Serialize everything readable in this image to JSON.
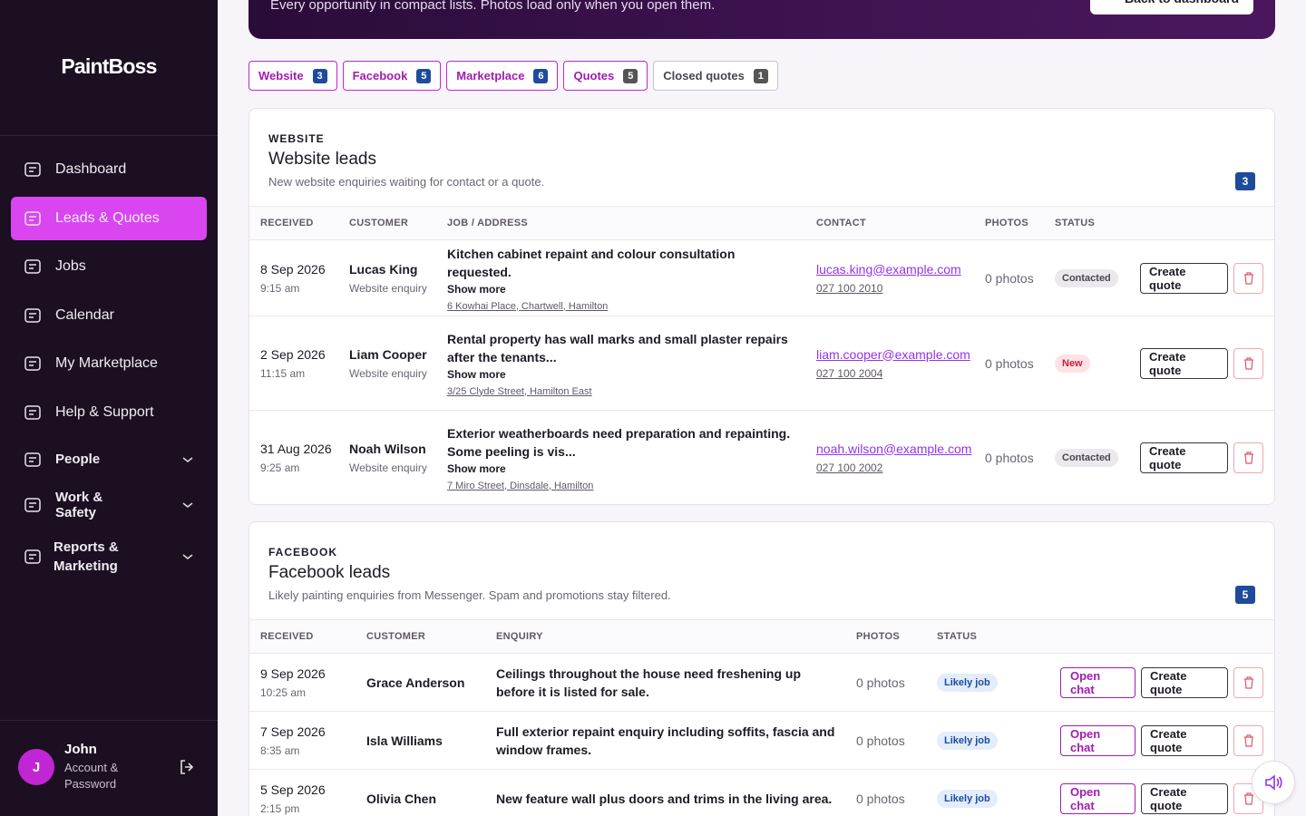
{
  "sidebar": {
    "brand": "PaintBoss",
    "nav": [
      {
        "label": "Dashboard",
        "active": false
      },
      {
        "label": "Leads & Quotes",
        "active": true
      },
      {
        "label": "Jobs",
        "active": false
      },
      {
        "label": "Calendar",
        "active": false
      },
      {
        "label": "My Marketplace",
        "active": false
      },
      {
        "label": "Help & Support",
        "active": false
      }
    ],
    "groups": [
      {
        "label": "People"
      },
      {
        "label": "Work & Safety"
      },
      {
        "label": "Reports & Marketing"
      }
    ],
    "user": {
      "initial": "J",
      "name": "John",
      "link": "Account & Password"
    }
  },
  "banner": {
    "subtitle": "Every opportunity in compact lists. Photos load only when you open them.",
    "button": "Back to dashboard"
  },
  "tabs": [
    {
      "label": "Website",
      "count": 3
    },
    {
      "label": "Facebook",
      "count": 5
    },
    {
      "label": "Marketplace",
      "count": 6
    },
    {
      "label": "Quotes",
      "count": 5
    },
    {
      "label": "Closed quotes",
      "count": 1
    }
  ],
  "website": {
    "eyebrow": "WEBSITE",
    "title": "Website leads",
    "description": "New website enquiries waiting for contact or a quote.",
    "count": 3,
    "columns": [
      "RECEIVED",
      "CUSTOMER",
      "JOB / ADDRESS",
      "CONTACT",
      "PHOTOS",
      "STATUS"
    ],
    "rows": [
      {
        "date": "8 Sep 2026",
        "time": "9:15 am",
        "customer": "Lucas King",
        "source": "Website enquiry",
        "job": "Kitchen cabinet repaint and colour consultation requested.",
        "more": "Show more",
        "address": "6 Kowhai Place, Chartwell, Hamilton",
        "email": "lucas.king@example.com",
        "phone": "027 100 2010",
        "photos": "0 photos",
        "status": "Contacted",
        "actions": [
          "Create quote"
        ]
      },
      {
        "date": "2 Sep 2026",
        "time": "11:15 am",
        "customer": "Liam Cooper",
        "source": "Website enquiry",
        "job": "Rental property has wall marks and small plaster repairs after the tenants...",
        "more": "Show more",
        "address": "3/25 Clyde Street, Hamilton East",
        "email": "liam.cooper@example.com",
        "phone": "027 100 2004",
        "photos": "0 photos",
        "status": "New",
        "actions": [
          "Create quote"
        ]
      },
      {
        "date": "31 Aug 2026",
        "time": "9:25 am",
        "customer": "Noah Wilson",
        "source": "Website enquiry",
        "job": "Exterior weatherboards need preparation and repainting. Some peeling is vis...",
        "more": "Show more",
        "address": "7 Miro Street, Dinsdale, Hamilton",
        "email": "noah.wilson@example.com",
        "phone": "027 100 2002",
        "photos": "0 photos",
        "status": "Contacted",
        "actions": [
          "Create quote"
        ]
      }
    ]
  },
  "facebook": {
    "eyebrow": "FACEBOOK",
    "title": "Facebook leads",
    "description": "Likely painting enquiries from Messenger. Spam and promotions stay filtered.",
    "count": 5,
    "columns": [
      "RECEIVED",
      "CUSTOMER",
      "ENQUIRY",
      "PHOTOS",
      "STATUS"
    ],
    "rows": [
      {
        "date": "9 Sep 2026",
        "time": "10:25 am",
        "customer": "Grace Anderson",
        "enquiry": "Ceilings throughout the house need freshening up before it is listed for sale.",
        "photos": "0 photos",
        "status": "Likely job",
        "actions": [
          "Open chat",
          "Create quote"
        ]
      },
      {
        "date": "7 Sep 2026",
        "time": "8:35 am",
        "customer": "Isla Williams",
        "enquiry": "Full exterior repaint enquiry including soffits, fascia and window frames.",
        "photos": "0 photos",
        "status": "Likely job",
        "actions": [
          "Open chat",
          "Create quote"
        ]
      },
      {
        "date": "5 Sep 2026",
        "time": "2:15 pm",
        "customer": "Olivia Chen",
        "enquiry": "New feature wall plus doors and trims in the living area.",
        "photos": "0 photos",
        "status": "Likely job",
        "actions": [
          "Open chat",
          "Create quote"
        ]
      }
    ]
  }
}
